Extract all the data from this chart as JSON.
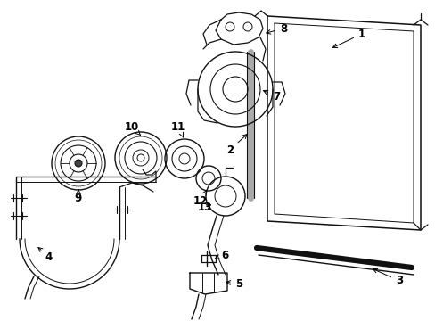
{
  "bg_color": "#ffffff",
  "line_color": "#111111",
  "label_color": "#000000",
  "figsize": [
    4.89,
    3.6
  ],
  "dpi": 100,
  "lw": 0.9
}
